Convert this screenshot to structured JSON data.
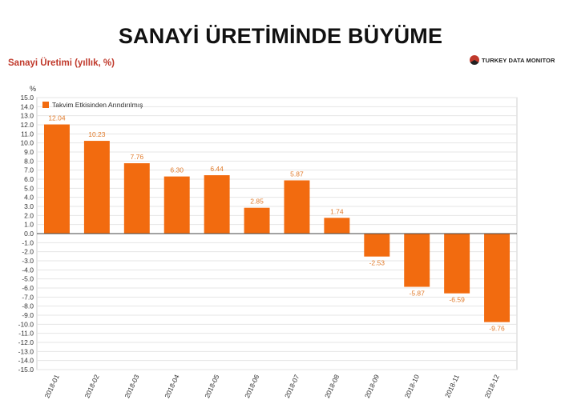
{
  "slide_title": "SANAYİ ÜRETİMİNDE BÜYÜME",
  "logo": {
    "text": "TURKEY DATA MONITOR",
    "icon": "turkey-data-monitor-logo-icon"
  },
  "chart_data": {
    "type": "bar",
    "title": "Sanayi Üretimi (yıllık, %)",
    "ylabel": "%",
    "xlabel": "",
    "ylim": [
      -15,
      15
    ],
    "ytick_step": 1,
    "grid": true,
    "legend_position": "top-left",
    "categories": [
      "2018-01",
      "2018-02",
      "2018-03",
      "2018-04",
      "2018-05",
      "2018-06",
      "2018-07",
      "2018-08",
      "2018-09",
      "2018-10",
      "2018-11",
      "2018-12"
    ],
    "series": [
      {
        "name": "Takvim Etkisinden Arındırılmış",
        "color": "#f26b0f",
        "values": [
          12.04,
          10.23,
          7.76,
          6.3,
          6.44,
          2.85,
          5.87,
          1.74,
          -2.53,
          -5.87,
          -6.59,
          -9.76
        ],
        "value_labels": [
          "12.04",
          "10.23",
          "7.76",
          "6.30",
          "6.44",
          "2.85",
          "5.87",
          "1.74",
          "-2.53",
          "-5.87",
          "-6.59",
          "-9.76"
        ]
      }
    ],
    "label_color": "#e07b2c"
  }
}
